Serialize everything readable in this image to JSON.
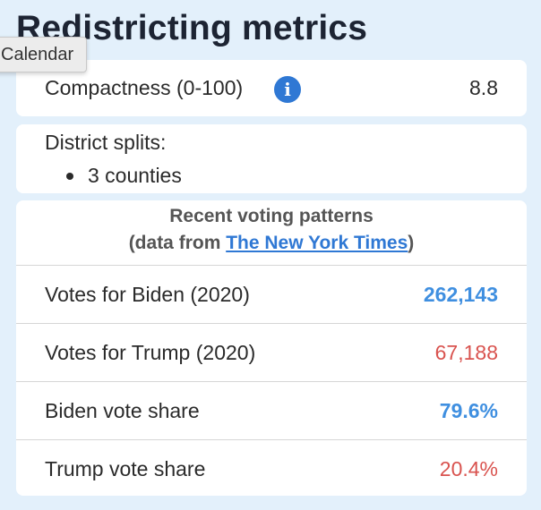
{
  "header": {
    "title": "Redistricting metrics"
  },
  "tooltip": {
    "text": "Calendar"
  },
  "compactness": {
    "label": "Compactness (0-100)",
    "info_icon": "info-icon",
    "value": "8.8"
  },
  "district_splits": {
    "label": "District splits:",
    "items": [
      "3 counties"
    ]
  },
  "voting": {
    "title": "Recent voting patterns",
    "source_prefix": "(data from ",
    "source_link": "The New York Times",
    "source_suffix": ")",
    "rows": [
      {
        "label": "Votes for Biden (2020)",
        "value": "262,143"
      },
      {
        "label": "Votes for Trump (2020)",
        "value": "67,188"
      },
      {
        "label": "Biden vote share",
        "value": "79.6%"
      },
      {
        "label": "Trump vote share",
        "value": "20.4%"
      }
    ]
  },
  "colors": {
    "background": "#e3f0fb",
    "democrat": "#3f8fe0",
    "republican": "#d9534f",
    "link": "#2f78d4"
  }
}
